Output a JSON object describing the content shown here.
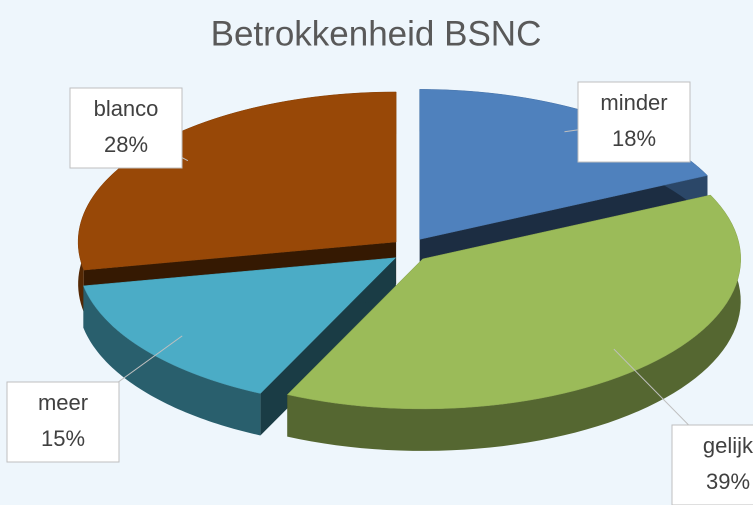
{
  "chart_data": {
    "type": "pie",
    "title": "Betrokkenheid BSNC",
    "categories": [
      "minder",
      "gelijk",
      "meer",
      "blanco"
    ],
    "values": [
      18,
      39,
      15,
      28
    ],
    "value_labels": [
      "18%",
      "39%",
      "15%",
      "28%"
    ],
    "colors": [
      "#4f81bd",
      "#9bbb59",
      "#4bacc6",
      "#984807"
    ]
  }
}
